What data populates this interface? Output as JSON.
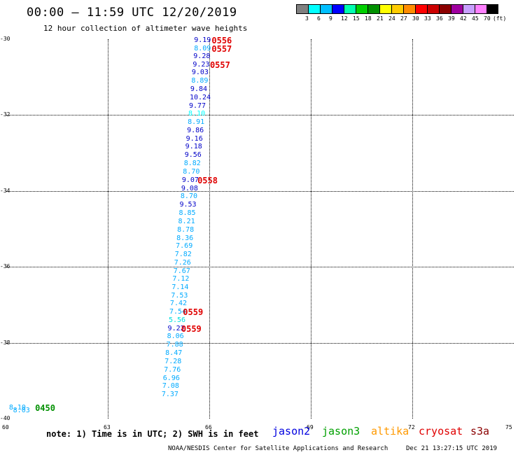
{
  "title": "00:00 — 11:59 UTC 12/20/2019",
  "subtitle": "12 hour collection of altimeter wave heights",
  "colorbar": {
    "colors": [
      "#808080",
      "#00ffff",
      "#00bfff",
      "#0000ff",
      "#00ffb0",
      "#00d000",
      "#009000",
      "#ffff00",
      "#ffcc00",
      "#ff8c00",
      "#ff0000",
      "#cc0000",
      "#8b0000",
      "#a000a0",
      "#c8a0ff",
      "#ff80ff",
      "#000000"
    ],
    "labels": [
      "3",
      "6",
      "9",
      "12",
      "15",
      "18",
      "21",
      "24",
      "27",
      "30",
      "33",
      "36",
      "39",
      "42",
      "45",
      "70",
      "(ft)"
    ]
  },
  "axes": {
    "y_ticks": [
      "-30",
      "-32",
      "-34",
      "-36",
      "-38",
      "-40"
    ],
    "x_ticks": [
      "60",
      "63",
      "66",
      "69",
      "72",
      "75"
    ]
  },
  "observations": [
    {
      "text": "9.19",
      "color": "#0000c8",
      "lon": 65.55,
      "lat": -30.03
    },
    {
      "text": "8.09",
      "color": "#00aaff",
      "lon": 65.55,
      "lat": -30.25
    },
    {
      "text": "9.28",
      "color": "#0000c8",
      "lon": 65.53,
      "lat": -30.46
    },
    {
      "text": "9.23",
      "color": "#0000c8",
      "lon": 65.51,
      "lat": -30.68
    },
    {
      "text": "9.03",
      "color": "#0000c8",
      "lon": 65.48,
      "lat": -30.89
    },
    {
      "text": "8.89",
      "color": "#00aaff",
      "lon": 65.47,
      "lat": -31.11
    },
    {
      "text": "9.84",
      "color": "#0000c8",
      "lon": 65.44,
      "lat": -31.33
    },
    {
      "text": "10.24",
      "color": "#0000c8",
      "lon": 65.42,
      "lat": -31.55
    },
    {
      "text": "9.77",
      "color": "#0000c8",
      "lon": 65.4,
      "lat": -31.77
    },
    {
      "text": "8.10",
      "color": "#00ffff",
      "lon": 65.38,
      "lat": -31.98
    },
    {
      "text": "8.91",
      "color": "#00aaff",
      "lon": 65.36,
      "lat": -32.2
    },
    {
      "text": "9.86",
      "color": "#0000c8",
      "lon": 65.34,
      "lat": -32.42
    },
    {
      "text": "9.16",
      "color": "#0000c8",
      "lon": 65.31,
      "lat": -32.64
    },
    {
      "text": "9.18",
      "color": "#0000c8",
      "lon": 65.29,
      "lat": -32.85
    },
    {
      "text": "9.56",
      "color": "#0000c8",
      "lon": 65.27,
      "lat": -33.07
    },
    {
      "text": "8.82",
      "color": "#00aaff",
      "lon": 65.25,
      "lat": -33.29
    },
    {
      "text": "8.70",
      "color": "#00aaff",
      "lon": 65.22,
      "lat": -33.51
    },
    {
      "text": "9.07",
      "color": "#0000c8",
      "lon": 65.19,
      "lat": -33.72
    },
    {
      "text": "9.08",
      "color": "#0000c8",
      "lon": 65.17,
      "lat": -33.94
    },
    {
      "text": "8.70",
      "color": "#00aaff",
      "lon": 65.15,
      "lat": -34.16
    },
    {
      "text": "9.53",
      "color": "#0000c8",
      "lon": 65.12,
      "lat": -34.38
    },
    {
      "text": "8.85",
      "color": "#00aaff",
      "lon": 65.1,
      "lat": -34.59
    },
    {
      "text": "8.21",
      "color": "#00aaff",
      "lon": 65.08,
      "lat": -34.81
    },
    {
      "text": "8.78",
      "color": "#00aaff",
      "lon": 65.05,
      "lat": -35.03
    },
    {
      "text": "8.36",
      "color": "#00aaff",
      "lon": 65.03,
      "lat": -35.25
    },
    {
      "text": "7.69",
      "color": "#00aaff",
      "lon": 65.01,
      "lat": -35.46
    },
    {
      "text": "7.82",
      "color": "#00aaff",
      "lon": 64.98,
      "lat": -35.68
    },
    {
      "text": "7.26",
      "color": "#00aaff",
      "lon": 64.96,
      "lat": -35.9
    },
    {
      "text": "7.67",
      "color": "#00aaff",
      "lon": 64.94,
      "lat": -36.12
    },
    {
      "text": "7.12",
      "color": "#00aaff",
      "lon": 64.91,
      "lat": -36.33
    },
    {
      "text": "7.14",
      "color": "#00aaff",
      "lon": 64.89,
      "lat": -36.55
    },
    {
      "text": "7.53",
      "color": "#00aaff",
      "lon": 64.87,
      "lat": -36.77
    },
    {
      "text": "7.42",
      "color": "#00aaff",
      "lon": 64.84,
      "lat": -36.98
    },
    {
      "text": "7.54",
      "color": "#00aaff",
      "lon": 64.82,
      "lat": -37.2
    },
    {
      "text": "5.56",
      "color": "#00e0e0",
      "lon": 64.8,
      "lat": -37.42
    },
    {
      "text": "9.22",
      "color": "#0000c8",
      "lon": 64.77,
      "lat": -37.64
    },
    {
      "text": "8.06",
      "color": "#00aaff",
      "lon": 64.75,
      "lat": -37.85
    },
    {
      "text": "7.88",
      "color": "#00aaff",
      "lon": 64.73,
      "lat": -38.07
    },
    {
      "text": "8.47",
      "color": "#00aaff",
      "lon": 64.7,
      "lat": -38.29
    },
    {
      "text": "7.28",
      "color": "#00aaff",
      "lon": 64.68,
      "lat": -38.51
    },
    {
      "text": "7.76",
      "color": "#00aaff",
      "lon": 64.66,
      "lat": -38.72
    },
    {
      "text": "6.96",
      "color": "#00aaff",
      "lon": 64.63,
      "lat": -38.94
    },
    {
      "text": "7.08",
      "color": "#00aaff",
      "lon": 64.61,
      "lat": -39.16
    },
    {
      "text": "7.37",
      "color": "#00aaff",
      "lon": 64.59,
      "lat": -39.38
    },
    {
      "text": "8.10",
      "color": "#00aaff",
      "lon": 60.08,
      "lat": -39.72
    },
    {
      "text": "8.03",
      "color": "#00aaff",
      "lon": 60.2,
      "lat": -39.79
    }
  ],
  "time_labels": [
    {
      "text": "0556",
      "color": "#e00000",
      "lon": 66.07,
      "lat": -30.03
    },
    {
      "text": "0557",
      "color": "#e00000",
      "lon": 66.07,
      "lat": -30.25
    },
    {
      "text": "0557",
      "color": "#e00000",
      "lon": 66.02,
      "lat": -30.68
    },
    {
      "text": "0558",
      "color": "#e00000",
      "lon": 65.65,
      "lat": -33.72
    },
    {
      "text": "0559",
      "color": "#e00000",
      "lon": 65.22,
      "lat": -37.2
    },
    {
      "text": "0559",
      "color": "#e00000",
      "lon": 65.17,
      "lat": -37.64
    },
    {
      "text": "0450",
      "color": "#009000",
      "lon": 60.85,
      "lat": -39.72
    }
  ],
  "note": "note: 1) Time is in UTC; 2) SWH is in feet",
  "legend": [
    {
      "label": "jason2",
      "color": "#0000e0"
    },
    {
      "label": "jason3",
      "color": "#00a000"
    },
    {
      "label": "altika",
      "color": "#ff9900"
    },
    {
      "label": "cryosat",
      "color": "#e00000"
    },
    {
      "label": "s3a",
      "color": "#8b0000"
    }
  ],
  "footer_left": "NOAA/NESDIS Center for Satellite Applications and Research",
  "footer_right": "Dec 21 13:27:15 UTC 2019"
}
